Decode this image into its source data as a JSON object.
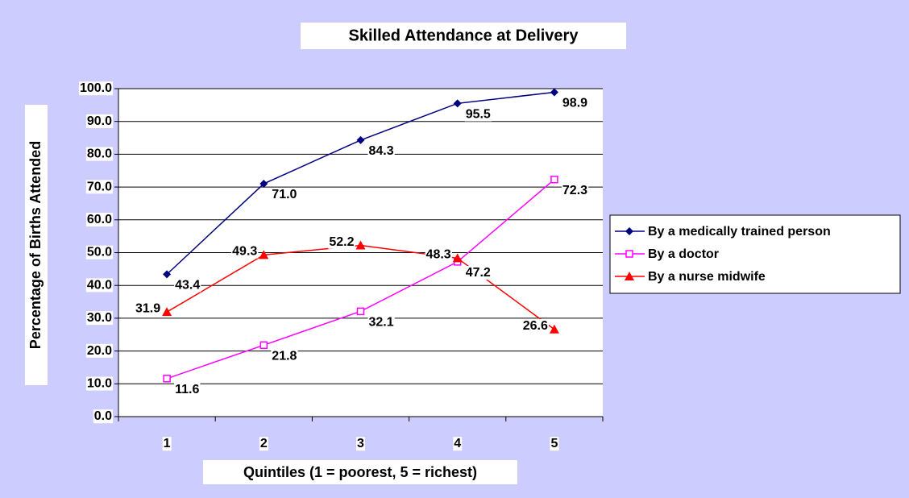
{
  "chart_data": {
    "type": "line",
    "title": "Skilled Attendance at Delivery",
    "x_label": "Quintiles (1 = poorest, 5 = richest)",
    "y_label": "Percentage of Births Attended",
    "categories": [
      "1",
      "2",
      "3",
      "4",
      "5"
    ],
    "series": [
      {
        "name": "By a medically trained person",
        "color": "#000080",
        "marker": "diamond",
        "values": [
          43.4,
          71.0,
          84.3,
          95.5,
          98.9
        ],
        "value_labels": [
          "43.4",
          "71.0",
          "84.3",
          "95.5",
          "98.9"
        ]
      },
      {
        "name": "By a doctor",
        "color": "#ff00ff",
        "marker": "square",
        "values": [
          11.6,
          21.8,
          32.1,
          47.2,
          72.3
        ],
        "value_labels": [
          "11.6",
          "21.8",
          "32.1",
          "47.2",
          "72.3"
        ]
      },
      {
        "name": "By a nurse midwife",
        "color": "#ff0000",
        "marker": "triangle",
        "values": [
          31.9,
          49.3,
          52.2,
          48.3,
          26.6
        ],
        "value_labels": [
          "31.9",
          "49.3",
          "52.2",
          "48.3",
          "26.6"
        ]
      }
    ],
    "ylim": [
      0,
      100
    ],
    "yticks": [
      {
        "value": 0,
        "label": "0.0"
      },
      {
        "value": 10,
        "label": "10.0"
      },
      {
        "value": 20,
        "label": "20.0"
      },
      {
        "value": 30,
        "label": "30.0"
      },
      {
        "value": 40,
        "label": "40.0"
      },
      {
        "value": 50,
        "label": "50.0"
      },
      {
        "value": 60,
        "label": "60.0"
      },
      {
        "value": 70,
        "label": "70.0"
      },
      {
        "value": 80,
        "label": "80.0"
      },
      {
        "value": 90,
        "label": "90.0"
      },
      {
        "value": 100,
        "label": "100.0"
      }
    ],
    "grid": true,
    "legend": "right"
  }
}
